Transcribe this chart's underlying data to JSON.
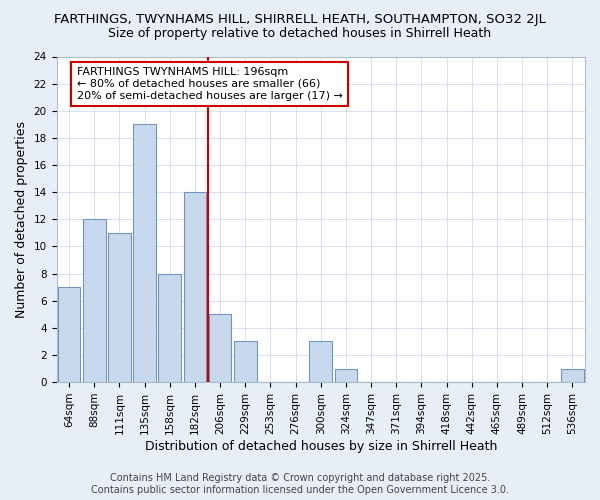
{
  "title": "FARTHINGS, TWYNHAMS HILL, SHIRRELL HEATH, SOUTHAMPTON, SO32 2JL",
  "subtitle": "Size of property relative to detached houses in Shirrell Heath",
  "xlabel": "Distribution of detached houses by size in Shirrell Heath",
  "ylabel": "Number of detached properties",
  "categories": [
    "64sqm",
    "88sqm",
    "111sqm",
    "135sqm",
    "158sqm",
    "182sqm",
    "206sqm",
    "229sqm",
    "253sqm",
    "276sqm",
    "300sqm",
    "324sqm",
    "347sqm",
    "371sqm",
    "394sqm",
    "418sqm",
    "442sqm",
    "465sqm",
    "489sqm",
    "512sqm",
    "536sqm"
  ],
  "values": [
    7,
    12,
    11,
    19,
    8,
    14,
    5,
    3,
    0,
    0,
    3,
    1,
    0,
    0,
    0,
    0,
    0,
    0,
    0,
    0,
    1
  ],
  "bar_color": "#c9d9ed",
  "bar_edge_color": "#7096c0",
  "ylim": [
    0,
    24
  ],
  "yticks": [
    0,
    2,
    4,
    6,
    8,
    10,
    12,
    14,
    16,
    18,
    20,
    22,
    24
  ],
  "vline_x_index": 5.5,
  "vline_color": "#cc0000",
  "annotation_box_text": "FARTHINGS TWYNHAMS HILL: 196sqm\n← 80% of detached houses are smaller (66)\n20% of semi-detached houses are larger (17) →",
  "annotation_box_color": "#ffffff",
  "annotation_box_edge_color": "#cc0000",
  "footer": "Contains HM Land Registry data © Crown copyright and database right 2025.\nContains public sector information licensed under the Open Government Licence 3.0.",
  "background_color": "#e8eef8",
  "plot_background_color": "#ffffff",
  "title_fontsize": 9.5,
  "subtitle_fontsize": 9,
  "tick_fontsize": 7.5,
  "label_fontsize": 9,
  "footer_fontsize": 7,
  "annotation_fontsize": 8
}
